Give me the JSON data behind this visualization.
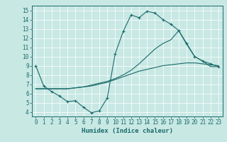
{
  "xlabel": "Humidex (Indice chaleur)",
  "xlim": [
    -0.5,
    23.5
  ],
  "ylim": [
    3.5,
    15.5
  ],
  "xticks": [
    0,
    1,
    2,
    3,
    4,
    5,
    6,
    7,
    8,
    9,
    10,
    11,
    12,
    13,
    14,
    15,
    16,
    17,
    18,
    19,
    20,
    21,
    22,
    23
  ],
  "yticks": [
    4,
    5,
    6,
    7,
    8,
    9,
    10,
    11,
    12,
    13,
    14,
    15
  ],
  "bg_color": "#c8e8e4",
  "line_color": "#1a6b6b",
  "line1_x": [
    0,
    1,
    2,
    3,
    4,
    5,
    6,
    7,
    8,
    9,
    10,
    11,
    12,
    13,
    14,
    15,
    16,
    17,
    18,
    19,
    20,
    21,
    22,
    23
  ],
  "line1_y": [
    9.0,
    6.8,
    6.2,
    5.7,
    5.1,
    5.2,
    4.5,
    3.9,
    4.1,
    5.5,
    10.3,
    12.7,
    14.5,
    14.2,
    14.9,
    14.7,
    14.0,
    13.5,
    12.8,
    11.4,
    10.0,
    9.5,
    9.2,
    8.9
  ],
  "line2_x": [
    0,
    1,
    2,
    3,
    4,
    5,
    6,
    7,
    8,
    9,
    10,
    11,
    12,
    13,
    14,
    15,
    16,
    17,
    18,
    19,
    20,
    21,
    22,
    23
  ],
  "line2_y": [
    6.5,
    6.5,
    6.5,
    6.5,
    6.5,
    6.6,
    6.7,
    6.8,
    7.0,
    7.2,
    7.5,
    7.8,
    8.1,
    8.4,
    8.6,
    8.8,
    9.0,
    9.1,
    9.2,
    9.3,
    9.3,
    9.2,
    9.1,
    9.0
  ],
  "line3_x": [
    0,
    1,
    2,
    3,
    4,
    5,
    6,
    7,
    8,
    9,
    10,
    11,
    12,
    13,
    14,
    15,
    16,
    17,
    18,
    19,
    20,
    21,
    22,
    23
  ],
  "line3_y": [
    6.5,
    6.5,
    6.5,
    6.5,
    6.5,
    6.6,
    6.7,
    6.9,
    7.1,
    7.3,
    7.6,
    8.0,
    8.5,
    9.2,
    10.0,
    10.8,
    11.4,
    11.8,
    12.8,
    11.3,
    10.0,
    9.5,
    8.9,
    8.9
  ],
  "tickfontsize": 5.5,
  "labelfontsize": 6.5
}
